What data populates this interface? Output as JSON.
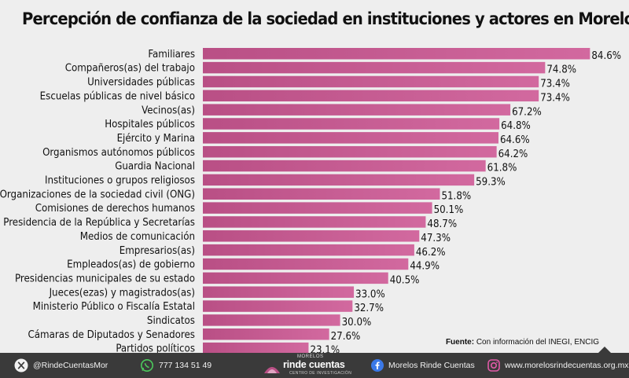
{
  "chart_data": {
    "type": "bar",
    "orientation": "horizontal",
    "title": "Percepción de confianza de la sociedad en instituciones y actores en Morelos",
    "categories": [
      "Familiares",
      "Compañeros(as) del trabajo",
      "Universidades públicas",
      "Escuelas públicas de nivel básico",
      "Vecinos(as)",
      "Hospitales públicos",
      "Ejército y Marina",
      "Organismos autónomos públicos",
      "Guardia Nacional",
      "Instituciones o grupos religiosos",
      "Organizaciones de la sociedad civil (ONG)",
      "Comisiones de derechos humanos",
      "Presidencia de la República y Secretarías",
      "Medios de comunicación",
      "Empresarios(as)",
      "Empleados(as) de gobierno",
      "Presidencias municipales de su estado",
      "Jueces(ezas) y magistrados(as)",
      "Ministerio Público o Fiscalía Estatal",
      "Sindicatos",
      "Cámaras de Diputados y Senadores",
      "Partidos políticos"
    ],
    "values": [
      84.6,
      74.8,
      73.4,
      73.4,
      67.2,
      64.8,
      64.6,
      64.2,
      61.8,
      59.3,
      51.8,
      50.1,
      48.7,
      47.3,
      46.2,
      44.9,
      40.5,
      33.0,
      32.7,
      30.0,
      27.6,
      23.1
    ],
    "value_labels": [
      "84.6%",
      "74.8%",
      "73.4%",
      "73.4%",
      "67.2%",
      "64.8%",
      "64.6%",
      "64.2%",
      "61.8%",
      "59.3%",
      "51.8%",
      "50.1%",
      "48.7%",
      "47.3%",
      "46.2%",
      "44.9%",
      "40.5%",
      "33.0%",
      "32.7%",
      "30.0%",
      "27.6%",
      "23.1%"
    ],
    "xlim": [
      0,
      100
    ],
    "grid": false,
    "bar_color": "#b94f85",
    "bar_gradient_end": "#d2699f"
  },
  "source": {
    "label": "Fuente:",
    "text": "Con información del INEGI, ENCIG"
  },
  "footer": {
    "twitter_handle": "@RindeCuentasMor",
    "whatsapp": "777 134 51 49",
    "logo_top": "MORELOS",
    "logo_main": "rinde cuentas",
    "logo_sub": "CENTRO DE INVESTIGACIÓN",
    "facebook": "Morelos Rinde Cuentas",
    "website": "www.morelosrindecuentas.org.mx",
    "background": "#3a3a3a",
    "icons": [
      "x-icon",
      "whatsapp-icon",
      "logo-icon",
      "facebook-icon",
      "instagram-icon"
    ]
  }
}
